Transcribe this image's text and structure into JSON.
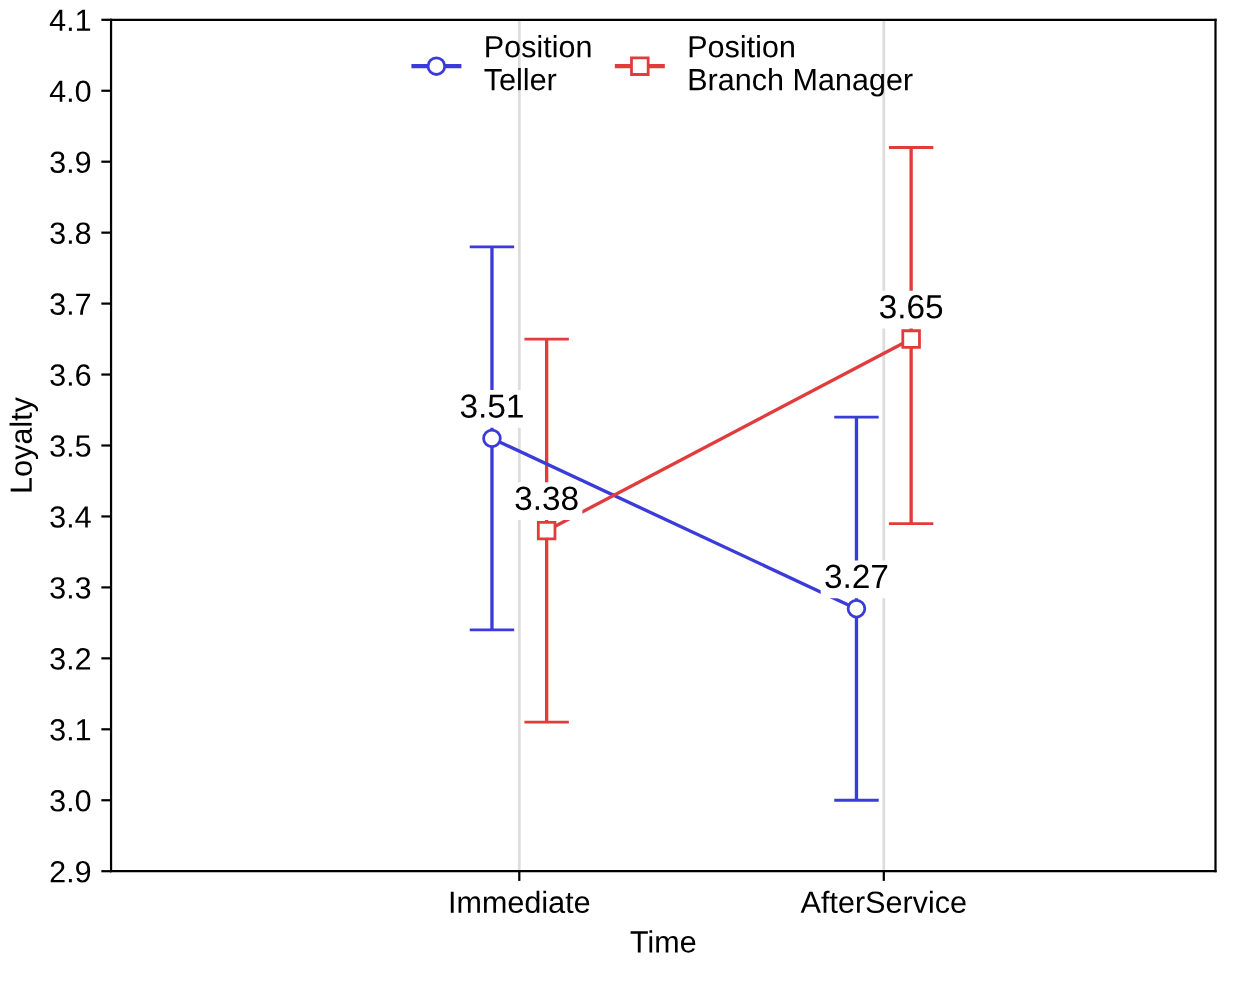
{
  "chart_data": {
    "type": "line",
    "xlabel": "Time",
    "ylabel": "Loyalty",
    "categories": [
      "Immediate",
      "AfterService"
    ],
    "series": [
      {
        "name": "Position\nTeller",
        "color": "#3b3bd9",
        "marker": "circle",
        "values": [
          3.51,
          3.27
        ],
        "errors": [
          [
            3.24,
            3.78
          ],
          [
            3.0,
            3.54
          ]
        ]
      },
      {
        "name": "Position\nBranch Manager",
        "color": "#e03c3c",
        "marker": "square",
        "values": [
          3.38,
          3.65
        ],
        "errors": [
          [
            3.11,
            3.65
          ],
          [
            3.39,
            3.92
          ]
        ]
      }
    ],
    "ylim": [
      2.9,
      4.1
    ],
    "yticks": [
      2.9,
      {
        "value": 3,
        "label": "3.0"
      },
      3.1,
      3.2,
      3.3,
      3.4,
      3.5,
      3.6,
      3.7,
      3.8,
      3.9,
      {
        "value": 4,
        "label": "4.0"
      },
      4.1
    ],
    "grid": "x",
    "legend": "top",
    "data_labels": true,
    "line_style": "solid"
  }
}
